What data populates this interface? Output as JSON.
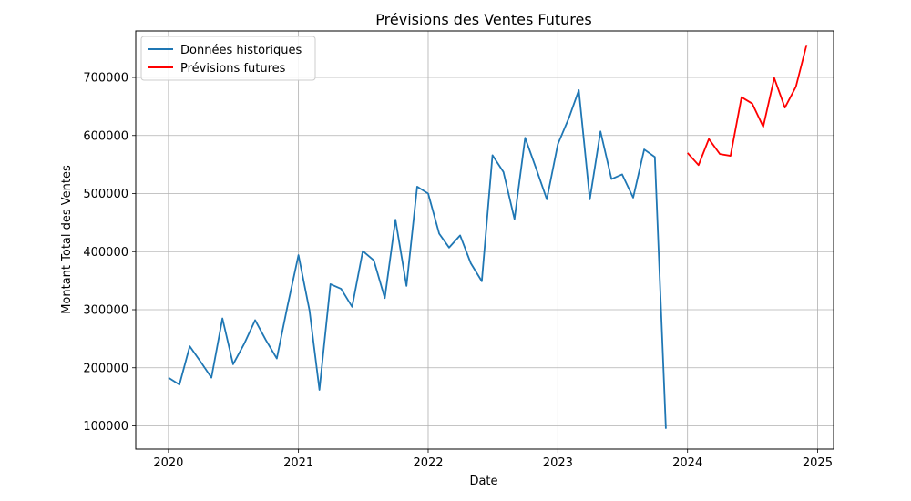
{
  "chart_data": {
    "type": "line",
    "title": "Prévisions des Ventes Futures",
    "xlabel": "Date",
    "ylabel": "Montant Total des Ventes",
    "x_ticks": [
      "2020",
      "2021",
      "2022",
      "2023",
      "2024",
      "2025"
    ],
    "y_ticks": [
      "100000",
      "200000",
      "300000",
      "400000",
      "500000",
      "600000",
      "700000"
    ],
    "xlim": [
      "2019-10-01",
      "2025-02-15"
    ],
    "ylim": [
      60000,
      780000
    ],
    "grid": true,
    "legend_position": "upper-left",
    "series": [
      {
        "name": "Données historiques",
        "color": "#1f77b4",
        "points": [
          [
            "2020-01-01",
            183000
          ],
          [
            "2020-02-01",
            171000
          ],
          [
            "2020-03-01",
            237000
          ],
          [
            "2020-04-01",
            210000
          ],
          [
            "2020-05-01",
            183000
          ],
          [
            "2020-06-01",
            285000
          ],
          [
            "2020-07-01",
            206000
          ],
          [
            "2020-08-01",
            241000
          ],
          [
            "2020-09-01",
            282000
          ],
          [
            "2020-10-01",
            248000
          ],
          [
            "2020-11-01",
            216000
          ],
          [
            "2020-12-01",
            306000
          ],
          [
            "2021-01-01",
            394000
          ],
          [
            "2021-02-01",
            299000
          ],
          [
            "2021-03-01",
            162000
          ],
          [
            "2021-04-01",
            344000
          ],
          [
            "2021-05-01",
            336000
          ],
          [
            "2021-06-01",
            305000
          ],
          [
            "2021-07-01",
            401000
          ],
          [
            "2021-08-01",
            385000
          ],
          [
            "2021-09-01",
            320000
          ],
          [
            "2021-10-01",
            455000
          ],
          [
            "2021-11-01",
            341000
          ],
          [
            "2021-12-01",
            512000
          ],
          [
            "2022-01-01",
            500000
          ],
          [
            "2022-02-01",
            431000
          ],
          [
            "2022-03-01",
            407000
          ],
          [
            "2022-04-01",
            428000
          ],
          [
            "2022-05-01",
            380000
          ],
          [
            "2022-06-01",
            349000
          ],
          [
            "2022-07-01",
            566000
          ],
          [
            "2022-08-01",
            537000
          ],
          [
            "2022-09-01",
            456000
          ],
          [
            "2022-10-01",
            596000
          ],
          [
            "2022-11-01",
            543000
          ],
          [
            "2022-12-01",
            490000
          ],
          [
            "2023-01-01",
            585000
          ],
          [
            "2023-02-01",
            630000
          ],
          [
            "2023-03-01",
            678000
          ],
          [
            "2023-04-01",
            490000
          ],
          [
            "2023-05-01",
            607000
          ],
          [
            "2023-06-01",
            525000
          ],
          [
            "2023-07-01",
            533000
          ],
          [
            "2023-08-01",
            493000
          ],
          [
            "2023-09-01",
            576000
          ],
          [
            "2023-10-01",
            563000
          ],
          [
            "2023-11-01",
            95000
          ]
        ]
      },
      {
        "name": "Prévisions futures",
        "color": "#ff0000",
        "points": [
          [
            "2024-01-01",
            570000
          ],
          [
            "2024-02-01",
            549000
          ],
          [
            "2024-03-01",
            594000
          ],
          [
            "2024-04-01",
            568000
          ],
          [
            "2024-05-01",
            565000
          ],
          [
            "2024-06-01",
            666000
          ],
          [
            "2024-07-01",
            655000
          ],
          [
            "2024-08-01",
            615000
          ],
          [
            "2024-09-01",
            699000
          ],
          [
            "2024-10-01",
            648000
          ],
          [
            "2024-11-01",
            684000
          ],
          [
            "2024-12-01",
            756000
          ]
        ]
      }
    ]
  }
}
